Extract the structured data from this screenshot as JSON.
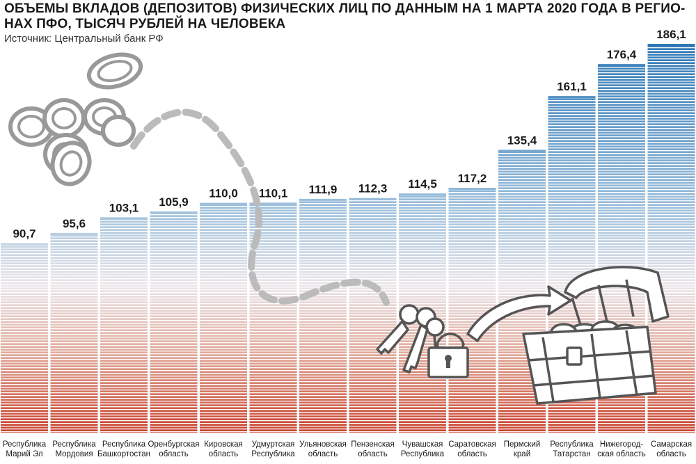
{
  "chart_data": {
    "type": "bar",
    "title": "ОБЪЕМЫ ВКЛАДОВ (ДЕПОЗИТОВ) ФИЗИЧЕСКИХ ЛИЦ ПО ДАННЫМ НА 1 МАРТА 2020 ГОДА В РЕГИОНАХ ПФО, ТЫСЯЧ РУБЛЕЙ НА ЧЕЛОВЕКА",
    "title_lines": [
      "ОБЪЕМЫ ВКЛАДОВ (ДЕПОЗИТОВ) ФИЗИЧЕСКИХ ЛИЦ ПО ДАННЫМ НА 1 МАРТА 2020 ГОДА В РЕГИО-",
      "НАХ ПФО, ТЫСЯЧ РУБЛЕЙ НА ЧЕЛОВЕКА"
    ],
    "source": "Источник: Центральный банк РФ",
    "categories": [
      [
        "Республика",
        "Марий Эл"
      ],
      [
        "Республика",
        "Мордовия"
      ],
      [
        "Республика",
        "Башкортостан"
      ],
      [
        "Оренбургская",
        "область"
      ],
      [
        "Кировская",
        "область"
      ],
      [
        "Удмуртская",
        "Республика"
      ],
      [
        "Ульяновская",
        "область"
      ],
      [
        "Пензенская",
        "область"
      ],
      [
        "Чувашская",
        "Республика"
      ],
      [
        "Саратовская",
        "область"
      ],
      [
        "Пермский",
        "край"
      ],
      [
        "Республика",
        "Татарстан"
      ],
      [
        "Нижегород-",
        "ская область"
      ],
      [
        "Самарская",
        "область"
      ]
    ],
    "values": [
      90.7,
      95.6,
      103.1,
      105.9,
      110.0,
      110.1,
      111.9,
      112.3,
      114.5,
      117.2,
      135.4,
      161.1,
      176.4,
      186.1
    ],
    "value_labels": [
      "90,7",
      "95,6",
      "103,1",
      "105,9",
      "110,0",
      "110,1",
      "111,9",
      "112,3",
      "114,5",
      "117,2",
      "135,4",
      "161,1",
      "176,4",
      "186,1"
    ],
    "ylim": [
      0,
      186.1
    ],
    "xlabel": "",
    "ylabel": "",
    "colors": {
      "top": "#2e78b6",
      "middle": "#e9e6e9",
      "bottom": "#c8402c",
      "stripe": "#ffffff"
    }
  },
  "decorations": [
    "coins-illustration",
    "dashed-path",
    "keys-with-padlock-icon",
    "arrow-icon",
    "treasure-chest-icon"
  ]
}
